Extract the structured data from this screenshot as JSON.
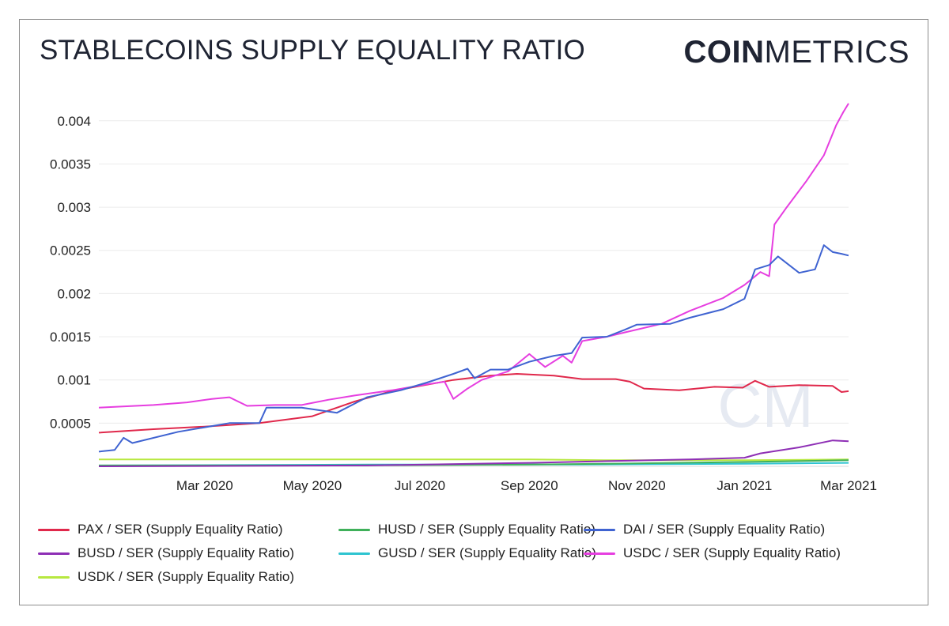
{
  "header": {
    "title": "STABLECOINS SUPPLY EQUALITY RATIO",
    "logo_bold": "COIN",
    "logo_light": "METRICS"
  },
  "watermark": "CM",
  "chart_data": {
    "type": "line",
    "title": "STABLECOINS SUPPLY EQUALITY RATIO",
    "xlabel": "",
    "ylabel": "",
    "x_range": [
      "2020-01-01",
      "2021-03-01"
    ],
    "ylim": [
      0,
      0.0043
    ],
    "x_ticks": [
      "Mar 2020",
      "May 2020",
      "Jul 2020",
      "Sep 2020",
      "Nov 2020",
      "Jan 2021",
      "Mar 2021"
    ],
    "y_ticks": [
      "0.0005",
      "0.001",
      "0.0015",
      "0.002",
      "0.0025",
      "0.003",
      "0.0035",
      "0.004"
    ],
    "grid": true,
    "legend_position": "bottom",
    "series": [
      {
        "name": "PAX / SER (Supply Equality Ratio)",
        "color": "#e0284b",
        "points": [
          [
            "2020-01-01",
            0.00039
          ],
          [
            "2020-02-01",
            0.00043
          ],
          [
            "2020-03-01",
            0.00046
          ],
          [
            "2020-04-01",
            0.0005
          ],
          [
            "2020-05-01",
            0.00058
          ],
          [
            "2020-05-25",
            0.00075
          ],
          [
            "2020-06-15",
            0.00087
          ],
          [
            "2020-07-01",
            0.00093
          ],
          [
            "2020-07-20",
            0.001
          ],
          [
            "2020-08-10",
            0.00105
          ],
          [
            "2020-08-25",
            0.00107
          ],
          [
            "2020-09-15",
            0.00105
          ],
          [
            "2020-10-01",
            0.00101
          ],
          [
            "2020-10-20",
            0.00101
          ],
          [
            "2020-10-28",
            0.00098
          ],
          [
            "2020-11-05",
            0.0009
          ],
          [
            "2020-11-25",
            0.00088
          ],
          [
            "2020-12-15",
            0.00092
          ],
          [
            "2020-12-31",
            0.00091
          ],
          [
            "2021-01-07",
            0.00099
          ],
          [
            "2021-01-15",
            0.00092
          ],
          [
            "2021-02-01",
            0.00094
          ],
          [
            "2021-02-20",
            0.00093
          ],
          [
            "2021-02-25",
            0.00086
          ],
          [
            "2021-03-01",
            0.00087
          ]
        ]
      },
      {
        "name": "HUSD / SER (Supply Equality Ratio)",
        "color": "#3fb05a",
        "points": [
          [
            "2020-01-01",
            1e-05
          ],
          [
            "2020-05-01",
            1e-05
          ],
          [
            "2020-09-01",
            2e-05
          ],
          [
            "2020-10-15",
            3e-05
          ],
          [
            "2021-01-01",
            5e-05
          ],
          [
            "2021-03-01",
            7e-05
          ]
        ]
      },
      {
        "name": "DAI / SER (Supply Equality Ratio)",
        "color": "#3f63d1",
        "points": [
          [
            "2020-01-01",
            0.00017
          ],
          [
            "2020-01-10",
            0.00019
          ],
          [
            "2020-01-15",
            0.00033
          ],
          [
            "2020-01-20",
            0.00027
          ],
          [
            "2020-02-15",
            0.0004
          ],
          [
            "2020-03-15",
            0.0005
          ],
          [
            "2020-04-01",
            0.0005
          ],
          [
            "2020-04-05",
            0.00068
          ],
          [
            "2020-04-25",
            0.00068
          ],
          [
            "2020-05-15",
            0.00062
          ],
          [
            "2020-06-01",
            0.0008
          ],
          [
            "2020-06-20",
            0.00088
          ],
          [
            "2020-07-05",
            0.00097
          ],
          [
            "2020-07-20",
            0.00107
          ],
          [
            "2020-07-28",
            0.00113
          ],
          [
            "2020-08-01",
            0.00102
          ],
          [
            "2020-08-10",
            0.00112
          ],
          [
            "2020-08-20",
            0.00112
          ],
          [
            "2020-09-01",
            0.00121
          ],
          [
            "2020-09-15",
            0.00128
          ],
          [
            "2020-09-25",
            0.00131
          ],
          [
            "2020-10-01",
            0.00149
          ],
          [
            "2020-10-15",
            0.0015
          ],
          [
            "2020-10-25",
            0.00158
          ],
          [
            "2020-11-01",
            0.00164
          ],
          [
            "2020-11-20",
            0.00165
          ],
          [
            "2020-12-01",
            0.00172
          ],
          [
            "2020-12-20",
            0.00182
          ],
          [
            "2021-01-01",
            0.00194
          ],
          [
            "2021-01-07",
            0.00228
          ],
          [
            "2021-01-15",
            0.00233
          ],
          [
            "2021-01-20",
            0.00243
          ],
          [
            "2021-02-01",
            0.00224
          ],
          [
            "2021-02-10",
            0.00228
          ],
          [
            "2021-02-15",
            0.00256
          ],
          [
            "2021-02-20",
            0.00248
          ],
          [
            "2021-02-25",
            0.00246
          ],
          [
            "2021-03-01",
            0.00244
          ]
        ]
      },
      {
        "name": "BUSD / SER (Supply Equality Ratio)",
        "color": "#8e2fb5",
        "points": [
          [
            "2020-01-01",
            0
          ],
          [
            "2020-06-01",
            1e-05
          ],
          [
            "2020-09-01",
            4e-05
          ],
          [
            "2020-10-15",
            6e-05
          ],
          [
            "2020-12-01",
            8e-05
          ],
          [
            "2021-01-01",
            0.0001
          ],
          [
            "2021-01-10",
            0.00015
          ],
          [
            "2021-02-01",
            0.00022
          ],
          [
            "2021-02-20",
            0.0003
          ],
          [
            "2021-03-01",
            0.00029
          ]
        ]
      },
      {
        "name": "GUSD / SER (Supply Equality Ratio)",
        "color": "#2ec4d0",
        "points": [
          [
            "2020-01-01",
            1e-05
          ],
          [
            "2020-06-01",
            2e-05
          ],
          [
            "2020-10-01",
            2e-05
          ],
          [
            "2021-01-01",
            3e-05
          ],
          [
            "2021-03-01",
            4e-05
          ]
        ]
      },
      {
        "name": "USDC / SER (Supply Equality Ratio)",
        "color": "#e63ee0",
        "points": [
          [
            "2020-01-01",
            0.00068
          ],
          [
            "2020-02-01",
            0.00071
          ],
          [
            "2020-02-20",
            0.00074
          ],
          [
            "2020-03-05",
            0.00078
          ],
          [
            "2020-03-15",
            0.0008
          ],
          [
            "2020-03-25",
            0.0007
          ],
          [
            "2020-04-10",
            0.00071
          ],
          [
            "2020-04-25",
            0.00071
          ],
          [
            "2020-05-10",
            0.00077
          ],
          [
            "2020-05-25",
            0.00082
          ],
          [
            "2020-06-15",
            0.00088
          ],
          [
            "2020-07-05",
            0.00095
          ],
          [
            "2020-07-15",
            0.00098
          ],
          [
            "2020-07-20",
            0.00078
          ],
          [
            "2020-07-28",
            0.0009
          ],
          [
            "2020-08-05",
            0.001
          ],
          [
            "2020-08-20",
            0.0011
          ],
          [
            "2020-09-01",
            0.0013
          ],
          [
            "2020-09-10",
            0.00115
          ],
          [
            "2020-09-20",
            0.00128
          ],
          [
            "2020-09-25",
            0.0012
          ],
          [
            "2020-10-01",
            0.00145
          ],
          [
            "2020-10-15",
            0.0015
          ],
          [
            "2020-10-25",
            0.00155
          ],
          [
            "2020-11-15",
            0.00165
          ],
          [
            "2020-12-01",
            0.0018
          ],
          [
            "2020-12-20",
            0.00195
          ],
          [
            "2021-01-01",
            0.0021
          ],
          [
            "2021-01-10",
            0.00225
          ],
          [
            "2021-01-15",
            0.0022
          ],
          [
            "2021-01-18",
            0.0028
          ],
          [
            "2021-01-25",
            0.003
          ],
          [
            "2021-02-05",
            0.0033
          ],
          [
            "2021-02-15",
            0.0036
          ],
          [
            "2021-02-22",
            0.00395
          ],
          [
            "2021-02-26",
            0.0041
          ],
          [
            "2021-03-01",
            0.0042
          ]
        ]
      },
      {
        "name": "USDK / SER (Supply Equality Ratio)",
        "color": "#b7e840",
        "points": [
          [
            "2020-01-01",
            8e-05
          ],
          [
            "2020-09-01",
            8e-05
          ],
          [
            "2020-10-15",
            7e-05
          ],
          [
            "2021-01-01",
            7e-05
          ],
          [
            "2021-03-01",
            8e-05
          ]
        ]
      }
    ]
  }
}
